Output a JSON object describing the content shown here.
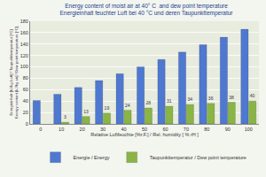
{
  "chart_data": {
    "type": "bar",
    "title": "Energy content of moist air at 40° C  and dew point temperature\nEnergieinhalt feuchter Luft bei 40 °C und deren Taupunkttemperatur",
    "x_label": "Relative Luftfeuchte [%r.F.] / Rel. humidity [ % rH ]",
    "y_label": "Energieinhalt [kJ/kg Luft] / Taupunkttemperatur [°C]\nEnergy content [kJ/kg air] / Dew point temperature [°C]",
    "categories": [
      "0",
      "10",
      "20",
      "30",
      "40",
      "50",
      "60",
      "70",
      "80",
      "90",
      "100"
    ],
    "series": [
      {
        "name": "Energie / Energy",
        "color": "#4f78d0",
        "values": [
          41,
          52,
          64,
          76,
          88,
          100,
          113,
          126,
          139,
          152,
          166
        ]
      },
      {
        "name": "Taupunkttemperatur / Dew point temperature",
        "color": "#8ab446",
        "data_labels": true,
        "values": [
          null,
          3,
          13,
          19,
          24,
          28,
          31,
          34,
          36,
          38,
          40
        ]
      }
    ],
    "ylim": [
      0,
      180
    ],
    "yticks": [
      0,
      20,
      40,
      60,
      80,
      100,
      120,
      140,
      160,
      180
    ],
    "grid": true,
    "legend": "bottom"
  }
}
